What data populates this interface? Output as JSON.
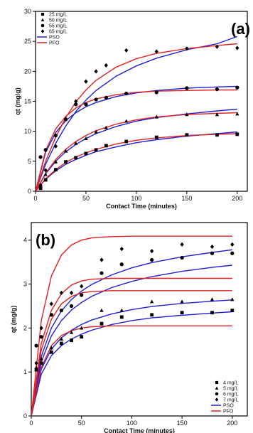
{
  "chart_data": [
    {
      "type": "scatter",
      "panel_label": "(a)",
      "xlabel": "Contact Time (minutes)",
      "ylabel": "qt (mg/g)",
      "xlim": [
        0,
        210
      ],
      "ylim": [
        0,
        30
      ],
      "xticks": [
        0,
        50,
        100,
        150,
        200
      ],
      "yticks": [
        0,
        5,
        10,
        15,
        20,
        25,
        30
      ],
      "grid": false,
      "legend_position": "top-left",
      "series": [
        {
          "name": "25 mg/L",
          "marker": "square",
          "kind": "data",
          "x": [
            5,
            10,
            20,
            30,
            40,
            50,
            60,
            70,
            90,
            120,
            150,
            180,
            200
          ],
          "y": [
            0.5,
            1.9,
            3.6,
            4.9,
            5.6,
            6.3,
            6.9,
            7.6,
            8.3,
            9.0,
            9.4,
            9.4,
            9.5
          ]
        },
        {
          "name": "50 mg/L",
          "marker": "triangle",
          "kind": "data",
          "x": [
            5,
            10,
            20,
            30,
            40,
            50,
            60,
            70,
            90,
            120,
            150,
            180,
            200
          ],
          "y": [
            1.0,
            2.8,
            4.9,
            6.7,
            8.0,
            8.8,
            9.9,
            10.6,
            11.7,
            12.4,
            12.8,
            12.8,
            12.9
          ]
        },
        {
          "name": "55 mg/L",
          "marker": "circle",
          "kind": "data",
          "x": [
            5,
            10,
            20,
            30,
            40,
            50,
            60,
            70,
            90,
            120,
            150,
            180,
            200
          ],
          "y": [
            5.7,
            6.9,
            9.3,
            12.0,
            14.5,
            14.5,
            15.3,
            15.6,
            16.3,
            16.5,
            17.2,
            17.0,
            17.3
          ]
        },
        {
          "name": "65 mg/L",
          "marker": "diamond",
          "kind": "data",
          "x": [
            5,
            10,
            20,
            30,
            40,
            50,
            60,
            70,
            90,
            120,
            150,
            180,
            200
          ],
          "y": [
            1.0,
            3.5,
            7.5,
            12.0,
            15.0,
            18.3,
            20.0,
            21.0,
            23.5,
            23.3,
            23.8,
            24.1,
            23.9
          ]
        },
        {
          "name": "PSO",
          "kind": "fit",
          "color": "#1f1fd6",
          "x": [
            0,
            10,
            20,
            30,
            40,
            50,
            60,
            80,
            100,
            120,
            150,
            180,
            200
          ],
          "y_sets": [
            [
              0,
              2.0,
              3.4,
              4.5,
              5.3,
              6.0,
              6.6,
              7.4,
              8.1,
              8.6,
              9.2,
              9.6,
              9.9
            ],
            [
              0,
              2.9,
              5.0,
              6.6,
              7.8,
              8.8,
              9.6,
              10.8,
              11.7,
              12.3,
              12.9,
              13.4,
              13.7
            ],
            [
              0,
              6.5,
              9.8,
              11.8,
              13.1,
              14.1,
              14.8,
              15.8,
              16.4,
              16.8,
              17.2,
              17.4,
              17.5
            ],
            [
              0,
              4.5,
              8.0,
              10.9,
              13.3,
              15.2,
              16.8,
              19.2,
              20.9,
              22.2,
              23.6,
              24.6,
              25.8
            ]
          ]
        },
        {
          "name": "PFO",
          "kind": "fit",
          "color": "#e02020",
          "x": [
            0,
            10,
            20,
            30,
            40,
            50,
            60,
            80,
            100,
            120,
            150,
            180,
            200
          ],
          "y_sets": [
            [
              0,
              2.1,
              3.6,
              4.8,
              5.7,
              6.4,
              7.0,
              7.9,
              8.5,
              8.9,
              9.3,
              9.5,
              9.6
            ],
            [
              0,
              3.0,
              5.3,
              7.0,
              8.3,
              9.3,
              10.1,
              11.2,
              11.9,
              12.4,
              12.8,
              13.0,
              13.1
            ],
            [
              0,
              6.8,
              10.4,
              12.5,
              13.9,
              14.8,
              15.4,
              16.1,
              16.5,
              16.7,
              16.8,
              16.9,
              16.9
            ],
            [
              0,
              5.0,
              9.0,
              12.3,
              14.9,
              16.9,
              18.5,
              20.7,
              22.1,
              23.0,
              23.8,
              24.3,
              24.6
            ]
          ]
        }
      ]
    },
    {
      "type": "scatter",
      "panel_label": "(b)",
      "xlabel": "Contact Time (minutes)",
      "ylabel": "qt (mg/g)",
      "xlim": [
        0,
        215
      ],
      "ylim": [
        0,
        4.4
      ],
      "xticks": [
        0,
        50,
        100,
        150,
        200
      ],
      "yticks": [
        0,
        1,
        2,
        3,
        4
      ],
      "grid": false,
      "legend_position": "bottom-right",
      "series": [
        {
          "name": "4 mg/L",
          "marker": "square",
          "kind": "data",
          "x": [
            5,
            10,
            20,
            30,
            40,
            50,
            70,
            90,
            120,
            150,
            180,
            200
          ],
          "y": [
            1.05,
            1.2,
            1.45,
            1.65,
            1.72,
            1.8,
            2.1,
            2.25,
            2.3,
            2.35,
            2.35,
            2.4
          ]
        },
        {
          "name": "5 mg/L",
          "marker": "triangle",
          "kind": "data",
          "x": [
            5,
            10,
            20,
            30,
            40,
            50,
            70,
            90,
            120,
            150,
            180,
            200
          ],
          "y": [
            1.1,
            1.3,
            1.55,
            1.75,
            1.9,
            2.0,
            2.4,
            2.4,
            2.6,
            2.6,
            2.65,
            2.65
          ]
        },
        {
          "name": "6 mg/L",
          "marker": "circle",
          "kind": "data",
          "x": [
            5,
            10,
            20,
            30,
            40,
            50,
            70,
            90,
            120,
            150,
            180,
            200
          ],
          "y": [
            1.6,
            1.8,
            2.3,
            2.4,
            2.5,
            2.75,
            3.25,
            3.45,
            3.55,
            3.6,
            3.7,
            3.7
          ]
        },
        {
          "name": "7 mg/L",
          "marker": "diamond",
          "kind": "data",
          "x": [
            5,
            10,
            20,
            30,
            40,
            50,
            70,
            90,
            120,
            150,
            180,
            200
          ],
          "y": [
            1.2,
            2.0,
            2.55,
            2.8,
            2.8,
            2.95,
            3.55,
            3.8,
            3.75,
            3.9,
            3.85,
            3.9
          ]
        },
        {
          "name": "PSO",
          "kind": "fit",
          "color": "#1f1fd6",
          "x": [
            0,
            10,
            20,
            30,
            40,
            50,
            60,
            80,
            100,
            120,
            150,
            180,
            200
          ],
          "y_sets": [
            [
              0,
              0.95,
              1.37,
              1.6,
              1.75,
              1.86,
              1.95,
              2.08,
              2.17,
              2.23,
              2.29,
              2.34,
              2.37
            ],
            [
              0,
              1.06,
              1.52,
              1.78,
              1.95,
              2.08,
              2.18,
              2.32,
              2.42,
              2.49,
              2.56,
              2.61,
              2.64
            ],
            [
              0,
              1.23,
              1.82,
              2.17,
              2.41,
              2.58,
              2.72,
              2.92,
              3.06,
              3.17,
              3.29,
              3.38,
              3.43
            ],
            [
              0,
              1.35,
              2.0,
              2.39,
              2.65,
              2.84,
              2.99,
              3.21,
              3.37,
              3.49,
              3.62,
              3.72,
              3.78
            ]
          ]
        },
        {
          "name": "PFO",
          "kind": "fit",
          "color": "#e02020",
          "x": [
            0,
            10,
            20,
            30,
            40,
            50,
            60,
            80,
            100,
            120,
            150,
            180,
            200
          ],
          "y_sets": [
            [
              0,
              1.1,
              1.6,
              1.83,
              1.94,
              2.0,
              2.03,
              2.05,
              2.05,
              2.05,
              2.05,
              2.05,
              2.05
            ],
            [
              0,
              1.5,
              2.2,
              2.55,
              2.72,
              2.8,
              2.83,
              2.85,
              2.85,
              2.85,
              2.85,
              2.85,
              2.85
            ],
            [
              0,
              1.65,
              2.4,
              2.78,
              2.98,
              3.07,
              3.11,
              3.13,
              3.13,
              3.13,
              3.13,
              3.13,
              3.13
            ],
            [
              0,
              2.17,
              3.18,
              3.66,
              3.89,
              4.0,
              4.05,
              4.08,
              4.09,
              4.09,
              4.09,
              4.09,
              4.09
            ]
          ]
        }
      ]
    }
  ]
}
